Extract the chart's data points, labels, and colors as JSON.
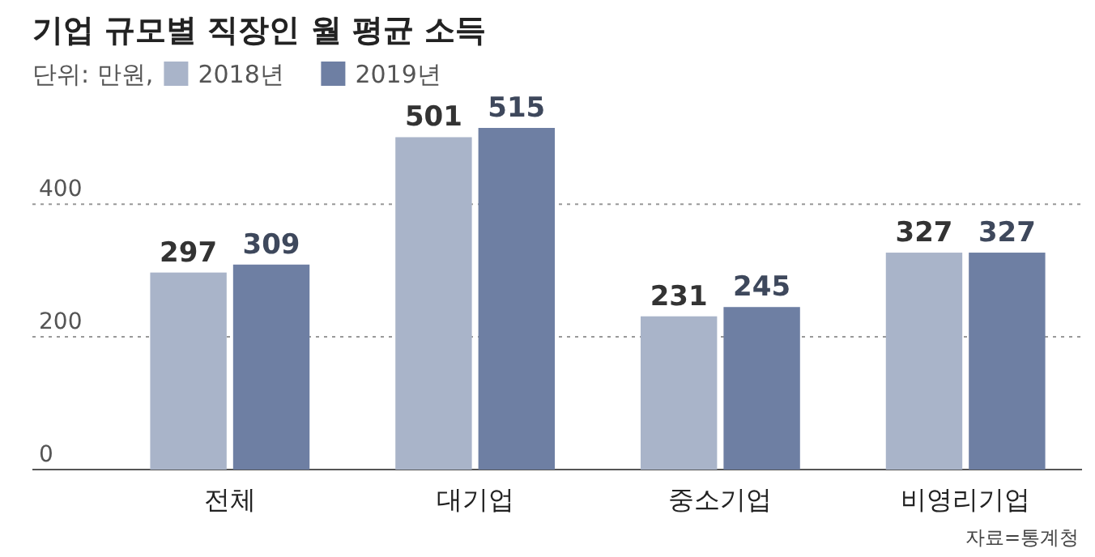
{
  "chart_data": {
    "type": "bar",
    "title": "기업 규모별 직장인 월 평균 소득",
    "subtitle": "단위: 만원,",
    "categories": [
      "전체",
      "대기업",
      "중소기업",
      "비영리기업"
    ],
    "series": [
      {
        "name": "2018년",
        "color": "#a9b4c9",
        "values": [
          297,
          501,
          231,
          327
        ]
      },
      {
        "name": "2019년",
        "color": "#6e7fa3",
        "values": [
          309,
          515,
          245,
          327
        ]
      }
    ],
    "ylim": [
      0,
      515
    ],
    "yticks": [
      0,
      200,
      400
    ],
    "grid": "y",
    "legend": "top left",
    "data_labels": true,
    "annotations": [
      "자료=통계청"
    ]
  }
}
